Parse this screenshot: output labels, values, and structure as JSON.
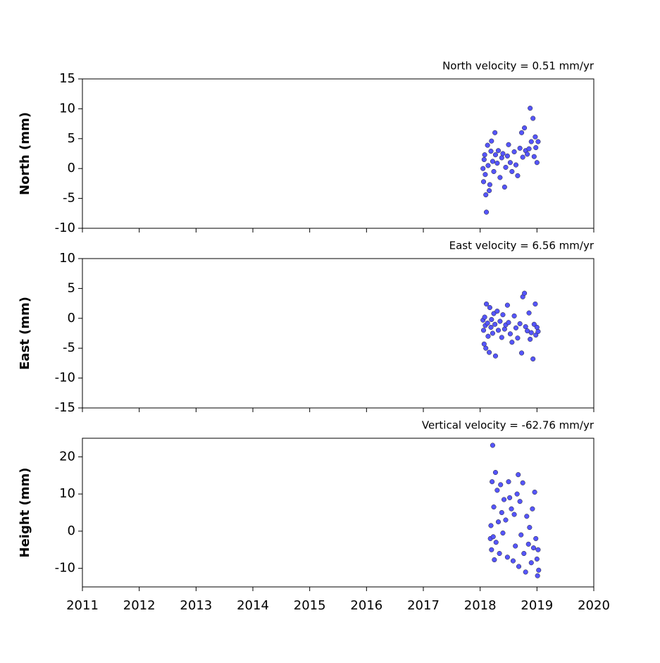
{
  "chart_data": [
    {
      "type": "scatter",
      "title": "North velocity = 0.51 mm/yr",
      "ylabel": "North (mm)",
      "color": "#5555ff",
      "x": [
        2018.05,
        2018.06,
        2018.07,
        2018.08,
        2018.09,
        2018.1,
        2018.11,
        2018.13,
        2018.14,
        2018.16,
        2018.17,
        2018.19,
        2018.2,
        2018.22,
        2018.24,
        2018.26,
        2018.27,
        2018.3,
        2018.32,
        2018.35,
        2018.38,
        2018.4,
        2018.43,
        2018.45,
        2018.48,
        2018.5,
        2018.53,
        2018.56,
        2018.6,
        2018.63,
        2018.66,
        2018.7,
        2018.73,
        2018.75,
        2018.78,
        2018.8,
        2018.83,
        2018.86,
        2018.88,
        2018.9,
        2018.93,
        2018.95,
        2018.97,
        2018.98,
        2019.0,
        2019.02
      ],
      "values": [
        0,
        -2.2,
        1.5,
        2.3,
        -1.0,
        -4.4,
        -7.3,
        3.9,
        0.5,
        -3.7,
        -2.7,
        2.9,
        4.6,
        1.2,
        -0.5,
        6.0,
        2.3,
        0.9,
        3.0,
        -1.5,
        1.8,
        2.5,
        -3.1,
        0.2,
        2.1,
        4.0,
        1.0,
        -0.5,
        2.8,
        0.6,
        -1.2,
        3.4,
        6.0,
        1.9,
        6.8,
        3.0,
        2.4,
        3.3,
        10.1,
        4.5,
        8.4,
        2.0,
        5.3,
        3.5,
        1.0,
        4.5
      ],
      "xlim": [
        2011,
        2020
      ],
      "xticks": [
        2011,
        2012,
        2013,
        2014,
        2015,
        2016,
        2017,
        2018,
        2019,
        2020
      ],
      "ylim": [
        -10,
        15
      ],
      "yticks": [
        -10,
        -5,
        0,
        5,
        10,
        15
      ]
    },
    {
      "type": "scatter",
      "title": "East velocity = 6.56 mm/yr",
      "ylabel": "East (mm)",
      "color": "#5555ff",
      "x": [
        2018.05,
        2018.06,
        2018.07,
        2018.08,
        2018.09,
        2018.1,
        2018.11,
        2018.13,
        2018.14,
        2018.16,
        2018.17,
        2018.19,
        2018.2,
        2018.22,
        2018.24,
        2018.26,
        2018.27,
        2018.3,
        2018.32,
        2018.35,
        2018.38,
        2018.4,
        2018.43,
        2018.45,
        2018.48,
        2018.5,
        2018.53,
        2018.56,
        2018.6,
        2018.63,
        2018.66,
        2018.7,
        2018.73,
        2018.75,
        2018.78,
        2018.8,
        2018.83,
        2018.86,
        2018.88,
        2018.9,
        2018.93,
        2018.95,
        2018.97,
        2018.98,
        2019.0,
        2019.02
      ],
      "values": [
        -0.3,
        -2.0,
        -4.3,
        0.2,
        -1.2,
        -5.0,
        2.4,
        -0.8,
        -3.0,
        -5.7,
        1.8,
        -1.5,
        -0.2,
        -2.5,
        0.8,
        -1.0,
        -6.3,
        1.2,
        -2.0,
        -0.5,
        -3.2,
        0.6,
        -1.8,
        -1.1,
        2.2,
        -0.7,
        -2.6,
        -4.0,
        0.4,
        -1.6,
        -3.3,
        -0.9,
        -5.8,
        3.6,
        4.2,
        -1.4,
        -2.1,
        0.9,
        -3.5,
        -2.4,
        -6.8,
        -1.0,
        2.4,
        -2.8,
        -1.5,
        -2.2
      ],
      "xlim": [
        2011,
        2020
      ],
      "xticks": [
        2011,
        2012,
        2013,
        2014,
        2015,
        2016,
        2017,
        2018,
        2019,
        2020
      ],
      "ylim": [
        -15,
        10
      ],
      "yticks": [
        -15,
        -10,
        -5,
        0,
        5,
        10
      ]
    },
    {
      "type": "scatter",
      "title": "Vertical velocity = -62.76 mm/yr",
      "ylabel": "Height (mm)",
      "color": "#5555ff",
      "x": [
        2018.18,
        2018.19,
        2018.2,
        2018.21,
        2018.22,
        2018.23,
        2018.24,
        2018.25,
        2018.27,
        2018.28,
        2018.3,
        2018.32,
        2018.34,
        2018.36,
        2018.38,
        2018.4,
        2018.42,
        2018.45,
        2018.48,
        2018.5,
        2018.52,
        2018.55,
        2018.58,
        2018.6,
        2018.62,
        2018.65,
        2018.67,
        2018.68,
        2018.7,
        2018.72,
        2018.75,
        2018.77,
        2018.8,
        2018.82,
        2018.85,
        2018.87,
        2018.9,
        2018.92,
        2018.94,
        2018.96,
        2018.98,
        2019.0,
        2019.01,
        2019.02,
        2019.03
      ],
      "values": [
        -2.0,
        1.5,
        -5.0,
        13.3,
        23.1,
        -1.5,
        6.5,
        -7.7,
        15.8,
        -3.0,
        11.0,
        2.5,
        -6.0,
        12.5,
        5.0,
        -0.5,
        8.5,
        3.0,
        -7.0,
        13.3,
        9.0,
        6.0,
        -8.0,
        4.5,
        -4.0,
        10.0,
        15.2,
        -9.5,
        8.0,
        -1.0,
        13.0,
        -6.0,
        -11.0,
        4.0,
        -3.5,
        1.0,
        -8.5,
        6.0,
        -4.5,
        10.5,
        -2.0,
        -7.5,
        -12.0,
        -5.0,
        -10.5
      ],
      "xlim": [
        2011,
        2020
      ],
      "xticks": [
        2011,
        2012,
        2013,
        2014,
        2015,
        2016,
        2017,
        2018,
        2019,
        2020
      ],
      "ylim": [
        -15,
        25
      ],
      "yticks": [
        -10,
        0,
        10,
        20
      ]
    }
  ]
}
